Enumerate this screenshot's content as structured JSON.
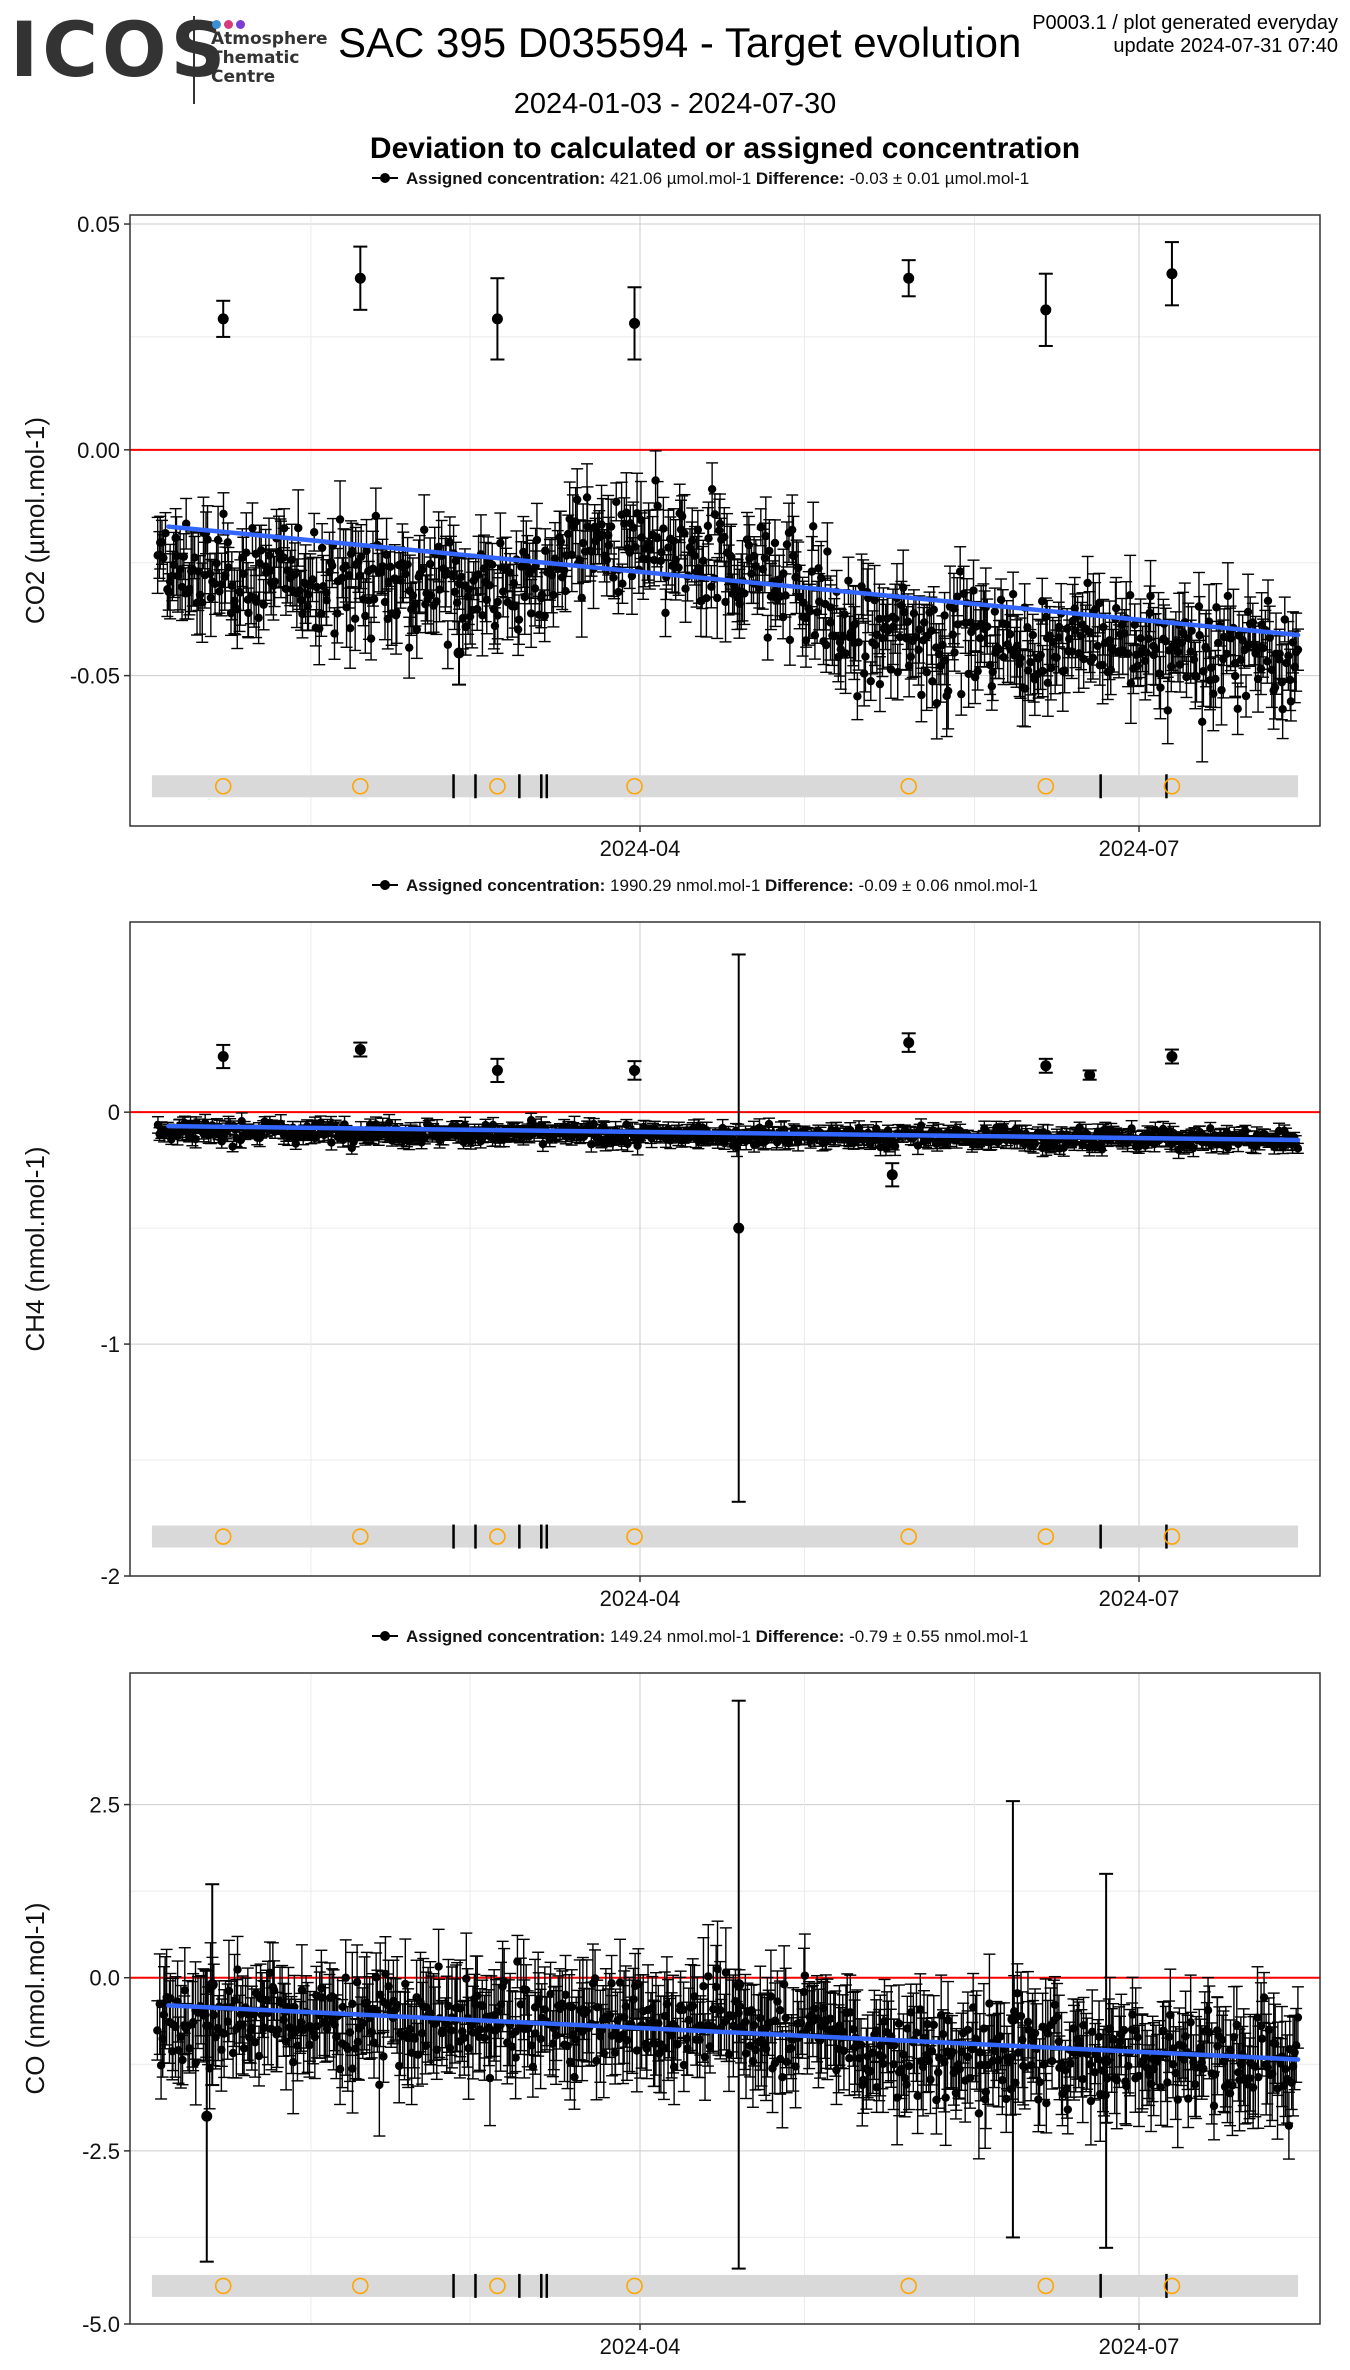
{
  "header": {
    "logo_text": "ICOS",
    "logo_sub": [
      "Atmosphere",
      "Thematic",
      "Centre"
    ],
    "logo_colors": [
      "#3b8fd6",
      "#d63b7a",
      "#7a3bd6"
    ],
    "title": "SAC 395 D035594 - Target evolution",
    "meta_line1": "P0003.1 / plot generated everyday",
    "meta_line2": "update  2024-07-31 07:40",
    "date_range": "2024-01-03 - 2024-07-30",
    "subtitle": "Deviation to calculated or assigned concentration"
  },
  "chart_data": [
    {
      "type": "scatter",
      "gas": "CO2",
      "ylabel": "CO2 (µmol.mol-1)",
      "legend": {
        "assigned_label": "Assigned concentration:",
        "assigned_value": "421.06 µmol.mol-1",
        "difference_label": "Difference:",
        "difference_value": "-0.03 ± 0.01 µmol.mol-1"
      },
      "xlim": [
        "2024-01-03",
        "2024-07-30"
      ],
      "xticks": [
        "2024-04",
        "2024-07"
      ],
      "ylim": [
        -0.0833,
        0.052
      ],
      "yticks": [
        -0.05,
        0.0,
        0.05
      ],
      "ytick_labels": [
        "-0.05",
        "0.00",
        "0.05"
      ],
      "reference_line": 0.0,
      "trend": {
        "start": [
          "2024-01-06",
          -0.017
        ],
        "end": [
          "2024-07-30",
          -0.041
        ]
      },
      "noise": {
        "bands": [
          [
            "2024-01-04",
            -0.027,
            0.008
          ],
          [
            "2024-03-15",
            -0.03,
            0.009
          ],
          [
            "2024-03-19",
            -0.02,
            0.008
          ],
          [
            "2024-05-01",
            -0.03,
            0.009
          ],
          [
            "2024-05-07",
            -0.04,
            0.009
          ],
          [
            "2024-07-30",
            -0.045,
            0.008
          ]
        ],
        "err": [
          0.004,
          0.009
        ],
        "n": 700
      },
      "outliers": [
        {
          "x": "2024-01-16",
          "y": 0.029,
          "err": 0.004
        },
        {
          "x": "2024-02-10",
          "y": 0.038,
          "err": 0.007
        },
        {
          "x": "2024-03-06",
          "y": 0.029,
          "err": 0.009
        },
        {
          "x": "2024-03-31",
          "y": 0.028,
          "err": 0.008
        },
        {
          "x": "2024-05-20",
          "y": 0.038,
          "err": 0.004
        },
        {
          "x": "2024-06-14",
          "y": 0.031,
          "err": 0.008
        },
        {
          "x": "2024-07-07",
          "y": 0.039,
          "err": 0.007
        },
        {
          "x": "2024-02-28",
          "y": -0.045,
          "err": 0.007
        }
      ],
      "markers": {
        "circles": [
          "2024-01-16",
          "2024-02-10",
          "2024-03-06",
          "2024-03-31",
          "2024-05-20",
          "2024-06-14",
          "2024-07-07"
        ],
        "ticks": [
          "2024-02-27",
          "2024-03-02",
          "2024-03-10",
          "2024-03-14",
          "2024-03-15",
          "2024-06-24",
          "2024-07-06"
        ]
      },
      "marker_y": -0.0745,
      "marker_colors": {
        "band": "#d9d9d9",
        "circle": "#ffa500",
        "tick": "#000000"
      }
    },
    {
      "type": "scatter",
      "gas": "CH4",
      "ylabel": "CH4 (nmol.mol-1)",
      "legend": {
        "assigned_label": "Assigned concentration:",
        "assigned_value": "1990.29 nmol.mol-1",
        "difference_label": "Difference:",
        "difference_value": "-0.09 ± 0.06 nmol.mol-1"
      },
      "xlim": [
        "2024-01-03",
        "2024-07-30"
      ],
      "xticks": [
        "2024-04",
        "2024-07"
      ],
      "ylim": [
        -2.0,
        0.82
      ],
      "yticks": [
        -2,
        -1,
        0
      ],
      "ytick_labels": [
        "-2",
        "-1",
        "0"
      ],
      "reference_line": 0.0,
      "trend": {
        "start": [
          "2024-01-06",
          -0.06
        ],
        "end": [
          "2024-07-30",
          -0.12
        ]
      },
      "noise": {
        "bands": [
          [
            "2024-01-04",
            -0.08,
            0.03
          ],
          [
            "2024-07-30",
            -0.12,
            0.03
          ]
        ],
        "err": [
          0.02,
          0.04
        ],
        "n": 700
      },
      "outliers": [
        {
          "x": "2024-01-16",
          "y": 0.24,
          "err": 0.05
        },
        {
          "x": "2024-02-10",
          "y": 0.27,
          "err": 0.03
        },
        {
          "x": "2024-03-06",
          "y": 0.18,
          "err": 0.05
        },
        {
          "x": "2024-03-31",
          "y": 0.18,
          "err": 0.04
        },
        {
          "x": "2024-05-20",
          "y": 0.3,
          "err": 0.04
        },
        {
          "x": "2024-06-14",
          "y": 0.2,
          "err": 0.03
        },
        {
          "x": "2024-06-22",
          "y": 0.16,
          "err": 0.02
        },
        {
          "x": "2024-07-07",
          "y": 0.24,
          "err": 0.03
        },
        {
          "x": "2024-04-19",
          "y": -0.5,
          "err": 1.18
        },
        {
          "x": "2024-05-17",
          "y": -0.27,
          "err": 0.05
        }
      ],
      "markers": {
        "circles": [
          "2024-01-16",
          "2024-02-10",
          "2024-03-06",
          "2024-03-31",
          "2024-05-20",
          "2024-06-14",
          "2024-07-07"
        ],
        "ticks": [
          "2024-02-27",
          "2024-03-02",
          "2024-03-10",
          "2024-03-14",
          "2024-03-15",
          "2024-06-24",
          "2024-07-06"
        ]
      },
      "marker_y": -1.83,
      "marker_colors": {
        "band": "#d9d9d9",
        "circle": "#ffa500",
        "tick": "#000000"
      }
    },
    {
      "type": "scatter",
      "gas": "CO",
      "ylabel": "CO (nmol.mol-1)",
      "legend": {
        "assigned_label": "Assigned concentration:",
        "assigned_value": "149.24 nmol.mol-1",
        "difference_label": "Difference:",
        "difference_value": "-0.79 ± 0.55 nmol.mol-1"
      },
      "xlim": [
        "2024-01-03",
        "2024-07-30"
      ],
      "xticks": [
        "2024-04",
        "2024-07"
      ],
      "ylim": [
        -5.0,
        4.4
      ],
      "yticks": [
        -5,
        -2.5,
        0,
        2.5
      ],
      "ytick_labels": [
        "-5.0",
        "-2.5",
        "0.0",
        "2.5"
      ],
      "reference_line": 0.0,
      "trend": {
        "start": [
          "2024-01-06",
          -0.4
        ],
        "end": [
          "2024-07-30",
          -1.18
        ]
      },
      "noise": {
        "bands": [
          [
            "2024-01-04",
            -0.6,
            0.45
          ],
          [
            "2024-05-07",
            -0.7,
            0.45
          ],
          [
            "2024-05-14",
            -1.1,
            0.55
          ],
          [
            "2024-07-30",
            -1.1,
            0.5
          ]
        ],
        "err": [
          0.35,
          0.75
        ],
        "n": 700
      },
      "outliers": [
        {
          "x": "2024-01-14",
          "y": -0.1,
          "err": 1.45
        },
        {
          "x": "2024-01-13",
          "y": -2.0,
          "err": 2.1
        },
        {
          "x": "2024-04-19",
          "y": -0.1,
          "err": 4.1
        },
        {
          "x": "2024-06-08",
          "y": -0.6,
          "err": 3.15
        },
        {
          "x": "2024-06-25",
          "y": -1.2,
          "err": 2.7
        }
      ],
      "markers": {
        "circles": [
          "2024-01-16",
          "2024-02-10",
          "2024-03-06",
          "2024-03-31",
          "2024-05-20",
          "2024-06-14",
          "2024-07-07"
        ],
        "ticks": [
          "2024-02-27",
          "2024-03-02",
          "2024-03-10",
          "2024-03-14",
          "2024-03-15",
          "2024-06-24",
          "2024-07-06"
        ]
      },
      "marker_y": -4.45,
      "marker_colors": {
        "band": "#d9d9d9",
        "circle": "#ffa500",
        "tick": "#000000"
      }
    }
  ],
  "colors": {
    "points": "#000000",
    "trend": "#3366ff",
    "reference": "#ff0000",
    "grid_major": "#cccccc",
    "grid_minor": "#ebebeb"
  }
}
